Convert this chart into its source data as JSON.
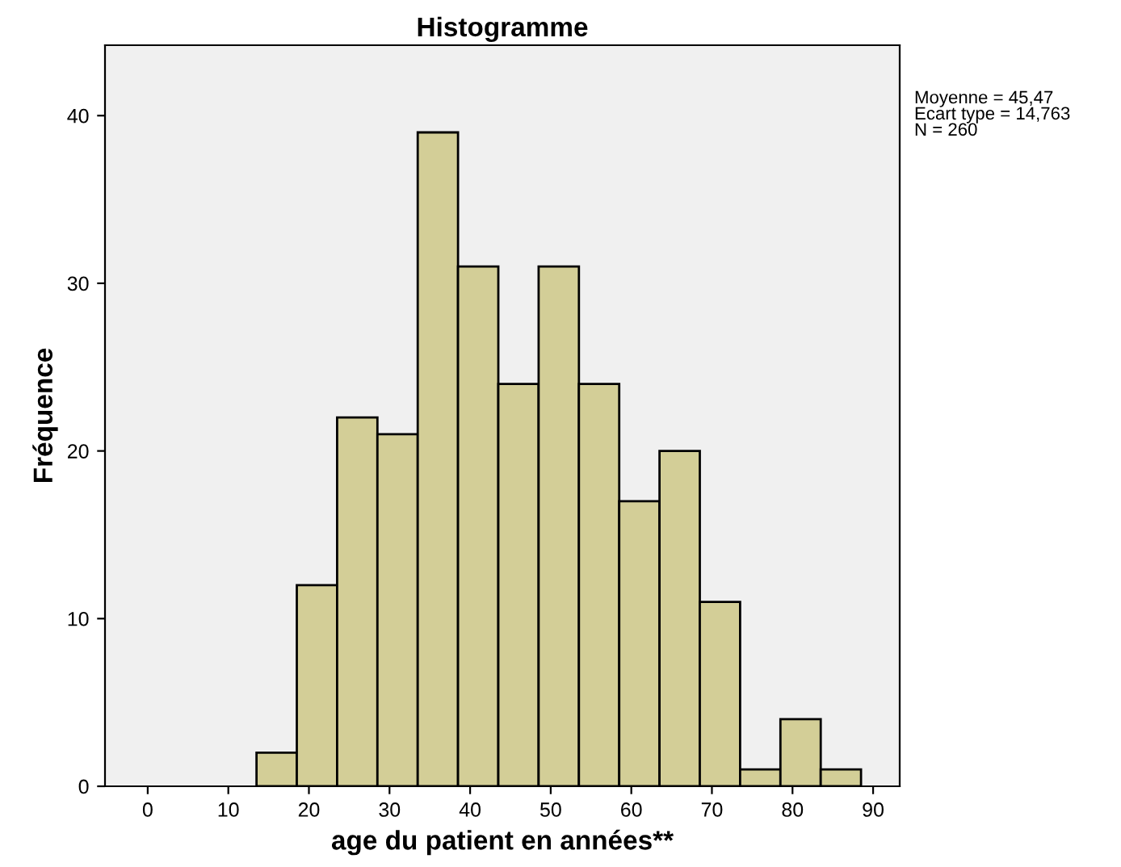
{
  "chart_data": {
    "type": "histogram",
    "title": "Histogramme",
    "xlabel": "age du patient en années**",
    "ylabel": "Fréquence",
    "bins": [
      13.5,
      18.5,
      23.5,
      28.5,
      33.5,
      38.5,
      43.5,
      48.5,
      53.5,
      58.5,
      63.5,
      68.5,
      73.5,
      78.5,
      83.5,
      88.5
    ],
    "values": [
      2,
      12,
      22,
      21,
      39,
      31,
      24,
      31,
      24,
      17,
      20,
      11,
      1,
      4,
      1
    ],
    "color": "#d3ce97",
    "xlim": [
      -5.3,
      93.3
    ],
    "ylim": [
      0,
      44.2
    ],
    "xticks": [
      0,
      10,
      20,
      30,
      40,
      50,
      60,
      70,
      80,
      90
    ],
    "yticks": [
      0,
      10,
      20,
      30,
      40
    ],
    "annotations": [
      "Moyenne = 45,47\nEcart type = 14,763\nN = 260"
    ],
    "grid": false,
    "legend": false
  }
}
